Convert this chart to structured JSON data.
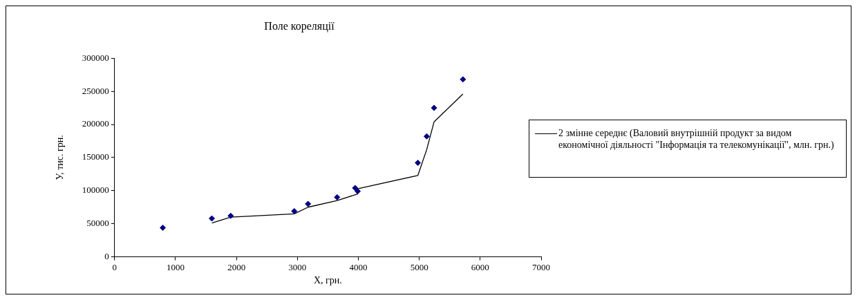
{
  "chart_data": {
    "type": "scatter",
    "title": "Поле кореляції",
    "xlabel": "Х, грн.",
    "ylabel": "У, тис. грн.",
    "xlim": [
      0,
      7000
    ],
    "xticks": [
      0,
      1000,
      2000,
      3000,
      4000,
      5000,
      6000,
      7000
    ],
    "ylim": [
      0,
      300000
    ],
    "yticks": [
      0,
      50000,
      100000,
      150000,
      200000,
      250000,
      300000
    ],
    "legend": "right",
    "marker": "diamond",
    "series": [
      {
        "type": "scatter",
        "color": "#000080",
        "x": [
          791,
          1596,
          1905,
          2949,
          3174,
          3652,
          3989,
          3947,
          4977,
          5122,
          5243,
          5716
        ],
        "values": [
          44000,
          58000,
          62000,
          69000,
          80000,
          90000,
          99000,
          104000,
          142000,
          182000,
          225000,
          268000
        ]
      },
      {
        "type": "line",
        "name": "2 змінне середнє (Валовий внутрішній продукт за видом економічної діяльності \"Інформація та телекомунікації\", млн. грн.)",
        "color": "#000000",
        "marker": "none",
        "x": [
          1596,
          1905,
          2949,
          3174,
          3652,
          3989,
          3947,
          4977,
          5122,
          5243,
          5716
        ],
        "values": [
          51000,
          60000,
          65000,
          75000,
          85000,
          95000,
          102000,
          123000,
          162000,
          204000,
          246000
        ]
      }
    ]
  }
}
